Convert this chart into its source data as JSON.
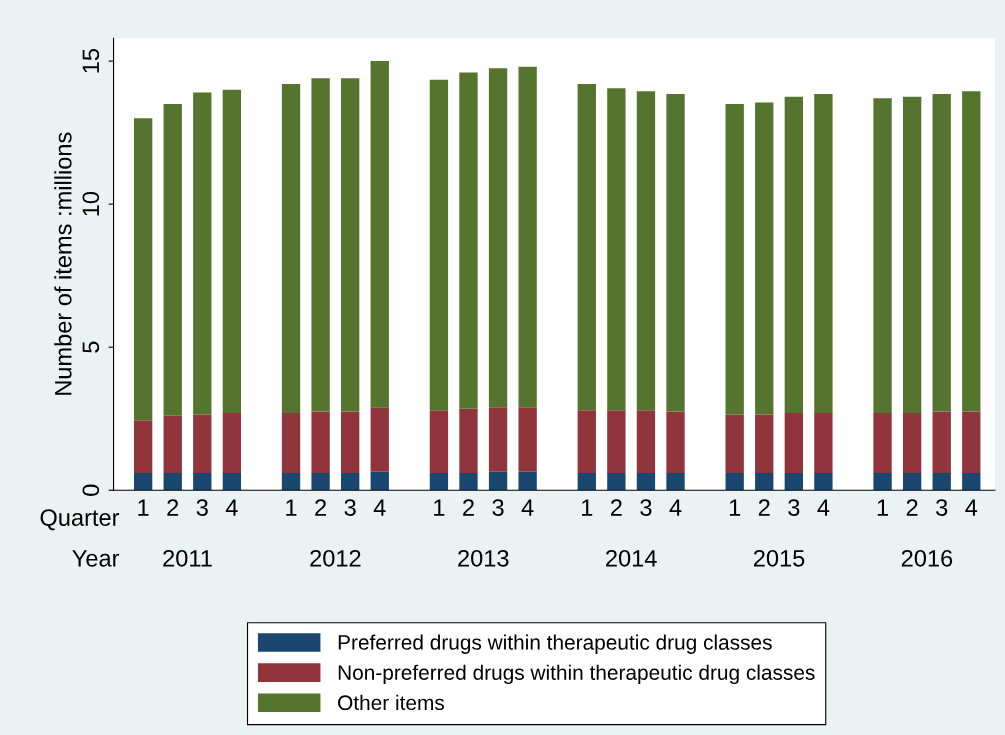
{
  "chart_data": {
    "type": "bar",
    "stacked": true,
    "ylabel": "Number of items :millions",
    "ylim": [
      0,
      15.8
    ],
    "yticks": [
      0,
      5,
      10,
      15
    ],
    "categories": [
      "1",
      "2",
      "3",
      "4",
      "1",
      "2",
      "3",
      "4",
      "1",
      "2",
      "3",
      "4",
      "1",
      "2",
      "3",
      "4",
      "1",
      "2",
      "3",
      "4",
      "1",
      "2",
      "3",
      "4"
    ],
    "annotations": [
      "Quarter",
      "Year",
      "2011",
      "2012",
      "2013",
      "2014",
      "2015",
      "2016"
    ],
    "legend": "bottom",
    "series": [
      {
        "name": "Preferred drugs within therapeutic drug classes",
        "color": "#1a476f",
        "values": [
          0.6,
          0.6,
          0.6,
          0.6,
          0.6,
          0.6,
          0.6,
          0.65,
          0.6,
          0.6,
          0.65,
          0.65,
          0.6,
          0.6,
          0.6,
          0.6,
          0.6,
          0.6,
          0.6,
          0.6,
          0.6,
          0.6,
          0.6,
          0.6
        ]
      },
      {
        "name": "Non-preferred drugs within therapeutic drug classes",
        "color": "#90353b",
        "values": [
          1.85,
          2.0,
          2.05,
          2.1,
          2.1,
          2.15,
          2.15,
          2.25,
          2.2,
          2.25,
          2.25,
          2.25,
          2.2,
          2.2,
          2.2,
          2.15,
          2.05,
          2.05,
          2.1,
          2.1,
          2.1,
          2.1,
          2.15,
          2.15
        ]
      },
      {
        "name": "Other items",
        "color": "#55752f",
        "values": [
          10.55,
          10.9,
          11.25,
          11.3,
          11.5,
          11.65,
          11.65,
          12.1,
          11.55,
          11.75,
          11.85,
          11.9,
          11.4,
          11.25,
          11.15,
          11.1,
          10.85,
          10.9,
          11.05,
          11.15,
          11.0,
          11.05,
          11.1,
          11.2
        ]
      }
    ]
  }
}
